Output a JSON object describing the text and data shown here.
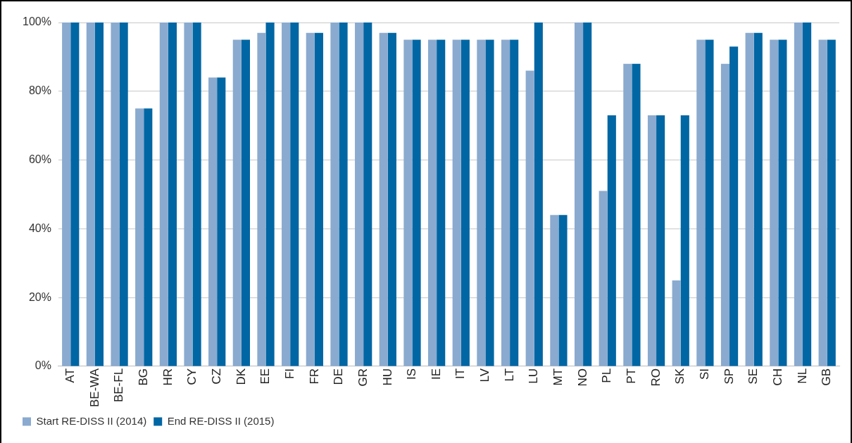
{
  "chart_data": {
    "type": "bar",
    "categories": [
      "AT",
      "BE-WA",
      "BE-FL",
      "BG",
      "HR",
      "CY",
      "CZ",
      "DK",
      "EE",
      "FI",
      "FR",
      "DE",
      "GR",
      "HU",
      "IS",
      "IE",
      "IT",
      "LV",
      "LT",
      "LU",
      "MT",
      "NO",
      "PL",
      "PT",
      "RO",
      "SK",
      "SI",
      "SP",
      "SE",
      "CH",
      "NL",
      "GB"
    ],
    "series": [
      {
        "name": "Start RE-DISS II (2014)",
        "color": "#8aaacf",
        "values": [
          100,
          100,
          100,
          75,
          100,
          100,
          84,
          95,
          97,
          100,
          97,
          100,
          100,
          97,
          95,
          95,
          95,
          95,
          95,
          86,
          44,
          100,
          51,
          88,
          73,
          25,
          95,
          88,
          97,
          95,
          100,
          95
        ]
      },
      {
        "name": "End RE-DISS II (2015)",
        "color": "#0066a4",
        "values": [
          100,
          100,
          100,
          75,
          100,
          100,
          84,
          95,
          100,
          100,
          97,
          100,
          100,
          97,
          95,
          95,
          95,
          95,
          95,
          100,
          44,
          100,
          73,
          88,
          73,
          73,
          95,
          93,
          97,
          95,
          100,
          95
        ]
      }
    ],
    "ylim": [
      0,
      100
    ],
    "yticks": [
      {
        "value": 0,
        "label": "0%"
      },
      {
        "value": 20,
        "label": "20%"
      },
      {
        "value": 40,
        "label": "40%"
      },
      {
        "value": 60,
        "label": "60%"
      },
      {
        "value": 80,
        "label": "80%"
      },
      {
        "value": 100,
        "label": "100%"
      }
    ],
    "grid": "y",
    "legend": "bottom left"
  }
}
